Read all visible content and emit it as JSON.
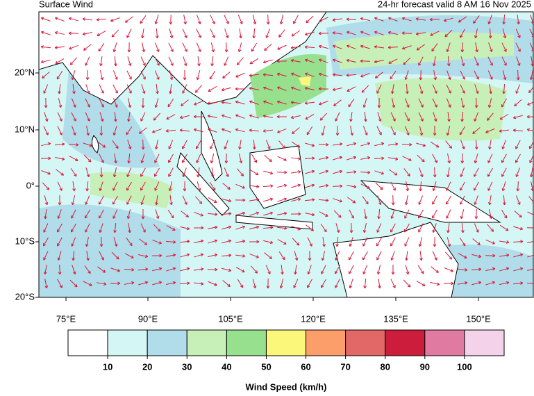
{
  "header": {
    "title": "Surface Wind",
    "subtitle": "24-hr forecast valid 8 AM 16 Nov 2025"
  },
  "map": {
    "lat_labels": [
      "20°N",
      "10°N",
      "0°",
      "10°S",
      "20°S"
    ],
    "lon_labels": [
      "75°E",
      "90°E",
      "105°E",
      "120°E",
      "135°E",
      "150°E"
    ]
  },
  "legend": {
    "title": "Wind Speed (km/h)",
    "colors": [
      "#ffffff",
      "#d4f7f5",
      "#b1dcea",
      "#c6f0b8",
      "#96e08e",
      "#fbf77a",
      "#fc9e6a",
      "#e26868",
      "#cc1e3c",
      "#e17aa0",
      "#f4d2ea"
    ],
    "ticks": [
      10,
      20,
      30,
      40,
      50,
      60,
      70,
      80,
      90,
      100
    ]
  }
}
